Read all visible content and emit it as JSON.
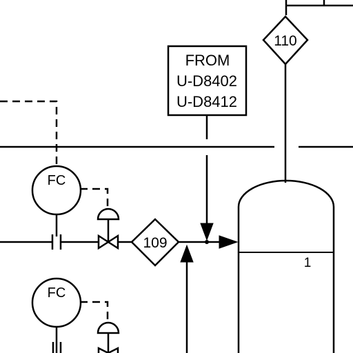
{
  "source_box": {
    "lines": [
      "FROM",
      "U-D8402",
      "U-D8412"
    ]
  },
  "tags": {
    "top": "110",
    "main": "109"
  },
  "controllers": {
    "upper": "FC",
    "lower": "FC"
  },
  "vessel": {
    "label": "1"
  }
}
